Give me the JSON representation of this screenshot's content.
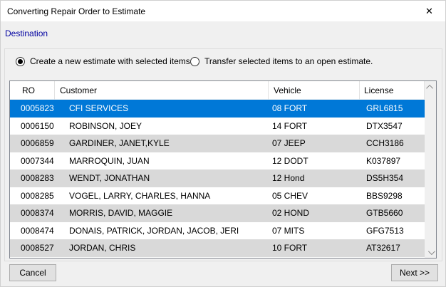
{
  "window": {
    "title": "Converting Repair Order to Estimate",
    "close_glyph": "✕"
  },
  "section_label": "Destination",
  "radios": [
    {
      "label": "Create a new estimate with selected items.",
      "selected": true
    },
    {
      "label": "Transfer selected items to an open estimate.",
      "selected": false
    }
  ],
  "table": {
    "columns": [
      "RO",
      "Customer",
      "Vehicle",
      "License"
    ],
    "rows": [
      {
        "ro": "0005823",
        "customer": "CFI SERVICES",
        "vehicle": "08 FORT",
        "license": "GRL6815",
        "selected": true
      },
      {
        "ro": "0006150",
        "customer": "ROBINSON, JOEY",
        "vehicle": "14 FORT",
        "license": "DTX3547"
      },
      {
        "ro": "0006859",
        "customer": "GARDINER, JANET,KYLE",
        "vehicle": "07 JEEP",
        "license": "CCH3186"
      },
      {
        "ro": "0007344",
        "customer": "MARROQUIN, JUAN",
        "vehicle": "12 DODT",
        "license": "K037897"
      },
      {
        "ro": "0008283",
        "customer": "WENDT, JONATHAN",
        "vehicle": "12 Hond",
        "license": "DS5H354"
      },
      {
        "ro": "0008285",
        "customer": "VOGEL, LARRY, CHARLES, HANNA",
        "vehicle": "05 CHEV",
        "license": "BBS9298"
      },
      {
        "ro": "0008374",
        "customer": "MORRIS, DAVID, MAGGIE",
        "vehicle": "02 HOND",
        "license": "GTB5660"
      },
      {
        "ro": "0008474",
        "customer": "DONAIS, PATRICK, JORDAN, JACOB, JERI",
        "vehicle": "07 MITS",
        "license": "GFG7513"
      },
      {
        "ro": "0008527",
        "customer": "JORDAN, CHRIS",
        "vehicle": "10 FORT",
        "license": "AT32617"
      }
    ]
  },
  "buttons": {
    "cancel": "Cancel",
    "next": "Next >>"
  },
  "colors": {
    "selection_blue": "#0078d7",
    "alt_row_gray": "#d9d9d9",
    "section_label_navy": "#0000a0",
    "dialog_bg": "#f0f0f0",
    "titlebar_bg": "#ffffff"
  }
}
